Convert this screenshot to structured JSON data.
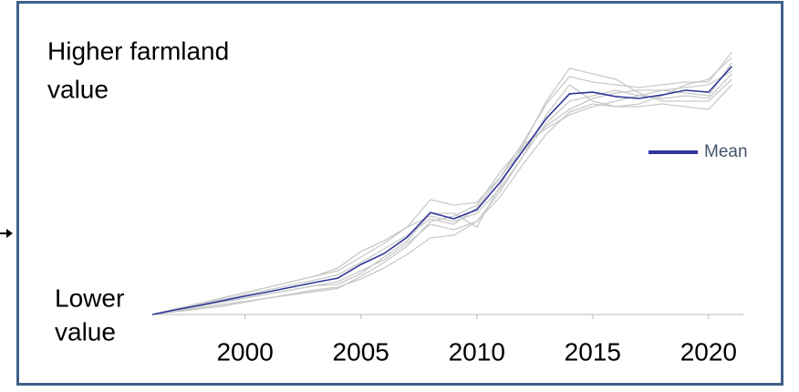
{
  "chart_data": {
    "type": "line",
    "annotations": [
      "Higher farmland",
      "value",
      "Lower",
      "value"
    ],
    "x": [
      1996,
      1997,
      1998,
      1999,
      2000,
      2001,
      2002,
      2003,
      2004,
      2005,
      2006,
      2007,
      2008,
      2009,
      2010,
      2011,
      2012,
      2013,
      2014,
      2015,
      2016,
      2017,
      2018,
      2019,
      2020,
      2021
    ],
    "xlim": [
      1996,
      2021.5
    ],
    "xticks": [
      2000,
      2005,
      2010,
      2015,
      2020
    ],
    "ylim": [
      0,
      100
    ],
    "series": [
      {
        "color": "#c9c9c9",
        "values": [
          0,
          2,
          4,
          6,
          8,
          10,
          12,
          14,
          16,
          21,
          26,
          32,
          42,
          40,
          41,
          50,
          63,
          77,
          87,
          85,
          84,
          83,
          84,
          85,
          85,
          96
        ]
      },
      {
        "color": "#c9c9c9",
        "values": [
          0,
          1.5,
          3,
          4.5,
          6,
          7.5,
          9,
          10.5,
          12,
          16,
          20,
          26,
          33,
          31,
          34,
          45,
          58,
          70,
          78,
          80,
          82,
          80,
          79,
          80,
          79,
          88
        ]
      },
      {
        "color": "#c9c9c9",
        "values": [
          0,
          1,
          2,
          3,
          4.5,
          6,
          7.5,
          9,
          10,
          13,
          17,
          22,
          28,
          29,
          34,
          43,
          55,
          66,
          74,
          77,
          76,
          76,
          77,
          76,
          75,
          84
        ]
      },
      {
        "color": "#c9c9c9",
        "values": [
          0,
          2,
          4,
          6,
          8,
          10,
          12,
          14,
          17,
          23,
          27,
          32,
          36,
          34,
          37,
          46,
          58,
          73,
          84,
          78,
          76,
          77,
          80,
          84,
          86,
          94
        ]
      },
      {
        "color": "#c9c9c9",
        "values": [
          0,
          1.5,
          3,
          4.5,
          6,
          7.5,
          9,
          10.5,
          11,
          15,
          21,
          27,
          37,
          37,
          32,
          47,
          62,
          78,
          90,
          88,
          86,
          81,
          78,
          78,
          78,
          86
        ]
      },
      {
        "color": "#c9c9c9",
        "values": [
          0,
          1.8,
          3.6,
          5.4,
          7.2,
          9,
          10.8,
          12.6,
          14.5,
          19,
          24,
          29,
          35,
          33,
          39,
          50,
          61,
          69,
          75,
          79,
          81,
          82,
          82,
          83,
          84,
          89
        ]
      },
      {
        "color": "#c9c9c9",
        "values": [
          0,
          1.2,
          2.4,
          3.6,
          4.8,
          6,
          7.2,
          8.4,
          9.5,
          14,
          19,
          25,
          34,
          36,
          40,
          52,
          62,
          68,
          73,
          76,
          78,
          80,
          82,
          81,
          80,
          92
        ]
      },
      {
        "name": "Mean",
        "color": "#30369a",
        "values": [
          0,
          1.7,
          3.3,
          5,
          6.7,
          8.3,
          10,
          11.7,
          13.3,
          18.3,
          22.3,
          28.3,
          37.3,
          35,
          38.3,
          48.3,
          60,
          71.7,
          80.7,
          81.3,
          79.7,
          79,
          80.3,
          82,
          81.3,
          90.7
        ]
      }
    ]
  }
}
